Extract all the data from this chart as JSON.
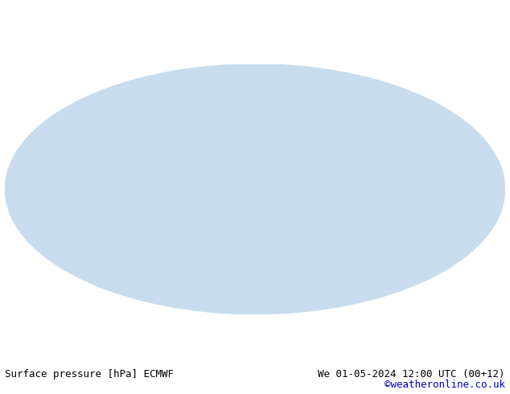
{
  "title_left": "Surface pressure [hPa] ECMWF",
  "title_right": "We 01-05-2024 12:00 UTC (00+12)",
  "credit": "©weatheronline.co.uk",
  "credit_color": "#0000cc",
  "background_color": "#ffffff",
  "map_background": "#f0f0f0",
  "land_color": "#90ee90",
  "ocean_color": "#e8e8e8",
  "contour_blue": "#0000ff",
  "contour_red": "#ff0000",
  "contour_black": "#000000",
  "label_fontsize": 7,
  "text_fontsize": 9,
  "figsize": [
    6.34,
    4.9
  ],
  "dpi": 100
}
